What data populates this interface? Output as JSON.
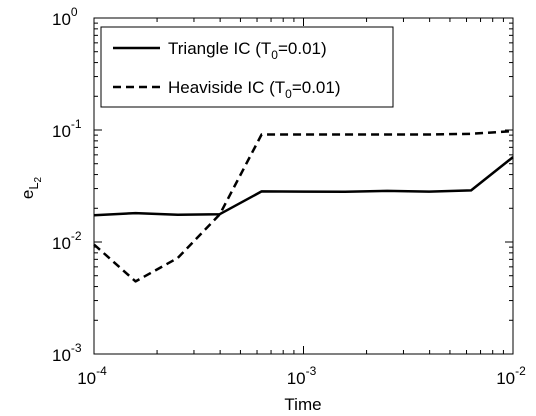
{
  "chart_data": {
    "type": "line",
    "title": "",
    "xlabel": "Time",
    "ylabel": "e",
    "ylabel_subscript": "L",
    "ylabel_subsubscript": "2",
    "xscale": "log",
    "yscale": "log",
    "xlim": [
      0.0001,
      0.01
    ],
    "ylim": [
      0.001,
      1
    ],
    "grid": false,
    "legend_position": "top-left",
    "x_ticks": [
      {
        "value": 0.0001,
        "base": "10",
        "exp": "-4"
      },
      {
        "value": 0.001,
        "base": "10",
        "exp": "-3"
      },
      {
        "value": 0.01,
        "base": "10",
        "exp": "-2"
      }
    ],
    "y_ticks": [
      {
        "value": 0.001,
        "base": "10",
        "exp": "-3"
      },
      {
        "value": 0.01,
        "base": "10",
        "exp": "-2"
      },
      {
        "value": 0.1,
        "base": "10",
        "exp": "-1"
      },
      {
        "value": 1,
        "base": "10",
        "exp": "0"
      }
    ],
    "series": [
      {
        "name_pre": "Triangle IC (T",
        "name_sub": "0",
        "name_post": "=0.01)",
        "line_style": "solid",
        "color": "#000000",
        "x": [
          0.0001,
          0.000158,
          0.000251,
          0.000398,
          0.000631,
          0.001,
          0.00158,
          0.00251,
          0.00398,
          0.00631,
          0.01
        ],
        "y": [
          0.0173,
          0.0181,
          0.0175,
          0.0177,
          0.0283,
          0.0282,
          0.0281,
          0.0286,
          0.0282,
          0.0289,
          0.0573
        ]
      },
      {
        "name_pre": "Heaviside IC (T",
        "name_sub": "0",
        "name_post": "=0.01)",
        "line_style": "dashed",
        "color": "#000000",
        "x": [
          0.0001,
          0.000158,
          0.000251,
          0.000398,
          0.000631,
          0.001,
          0.00158,
          0.00251,
          0.00398,
          0.00631,
          0.01
        ],
        "y": [
          0.0095,
          0.00445,
          0.0072,
          0.0176,
          0.0912,
          0.0912,
          0.0912,
          0.0912,
          0.0912,
          0.0925,
          0.0977
        ]
      }
    ]
  }
}
